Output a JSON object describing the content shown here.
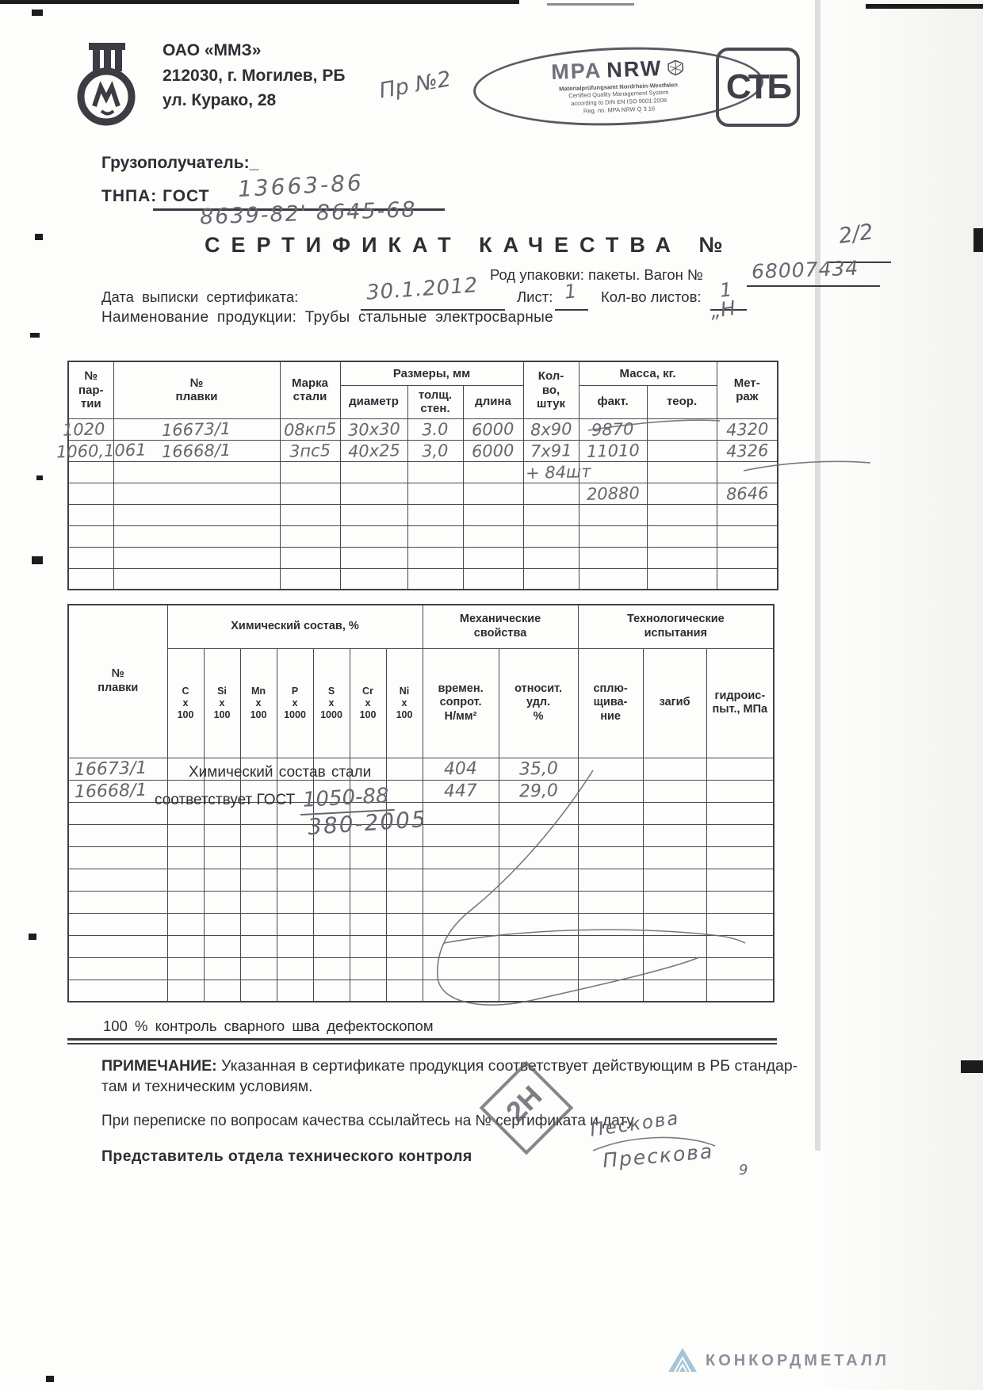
{
  "header": {
    "company": "ОАО «ММЗ»",
    "address1": "212030, г. Могилев, РБ",
    "address2": "ул. Курако, 28",
    "hw_note": "Пр №2",
    "mpa": {
      "name_part1": "MPA",
      "name_part2": "NRW",
      "sub1": "Materialprüfungsamt Nordrhein-Westfalen",
      "sub2": "Certified Quality Management System",
      "sub3": "according to DIN EN ISO 9001:2008",
      "sub4": "Reg. no. MPA NRW Q 3 16"
    },
    "stb": "СТБ"
  },
  "meta": {
    "consignee_label": "Грузополучатель:_",
    "tnpa_label": "ТНПА: ГОСТ",
    "tnpa_hw1": "13663-86",
    "tnpa_hw2": "8639-82' 8645-68",
    "title": "СЕРТИФИКАТ КАЧЕСТВА №",
    "title_hw": "2/2",
    "packing_label": "Род упаковки: пакеты. Вагон №",
    "packing_hw": "68007434",
    "date_label": "Дата выписки сертификата:",
    "date_hw": "30.1.2012",
    "sheet_label": "Лист:",
    "sheet_hw": "1",
    "sheets_count_label": "Кол-во листов:",
    "sheets_count_hw": "1",
    "product_label": "Наименование продукции: Трубы стальные электросварные",
    "product_hw": "„Н"
  },
  "table1": {
    "headers": {
      "batch": "№\nпар-\nтии",
      "melt": "№\nплавки",
      "grade": "Марка\nстали",
      "sizes_group": "Размеры, мм",
      "diameter": "диаметр",
      "wall": "толщ.\nстен.",
      "length": "длина",
      "qty": "Кол-\nво,\nштук",
      "mass_group": "Масса, кг.",
      "fact": "факт.",
      "theor": "теор.",
      "metrage": "Мет-\nраж"
    },
    "rows": [
      [
        "1020",
        "16673/1",
        "08кп5",
        "30х30",
        "3.0",
        "6000",
        "8х90",
        "9870",
        "",
        "4320"
      ],
      [
        "1060,1061",
        "16668/1",
        "3пс5",
        "40х25",
        "3,0",
        "6000",
        "7х91",
        "11010",
        "",
        "4326"
      ],
      [
        "",
        "",
        "",
        "",
        "",
        "",
        "+ 84шт",
        "",
        "",
        ""
      ],
      [
        "",
        "",
        "",
        "",
        "",
        "",
        "",
        "20880",
        "",
        "8646"
      ],
      [
        "",
        "",
        "",
        "",
        "",
        "",
        "",
        "",
        "",
        ""
      ],
      [
        "",
        "",
        "",
        "",
        "",
        "",
        "",
        "",
        "",
        ""
      ],
      [
        "",
        "",
        "",
        "",
        "",
        "",
        "",
        "",
        "",
        ""
      ],
      [
        "",
        "",
        "",
        "",
        "",
        "",
        "",
        "",
        "",
        ""
      ]
    ]
  },
  "table2": {
    "headers": {
      "melt": "№\nплавки",
      "chem_group": "Химический состав, %",
      "c": "C\nx\n100",
      "si": "Si\nx\n100",
      "mn": "Mn\nx\n100",
      "p": "P\nx\n1000",
      "s": "S\nx\n1000",
      "cr": "Cr\nx\n100",
      "ni": "Ni\nx\n100",
      "mech_group": "Механические\nсвойства",
      "tensile": "времен.\nсопрот.\nН/мм²",
      "elong": "относит.\nудл.\n%",
      "tech_group": "Технологические\nиспытания",
      "flatten": "сплю-\nщива-\nние",
      "bend": "загиб",
      "hydro": "гидроис-\nпыт., МПа"
    },
    "note_printed1": "Химический состав стали",
    "note_printed2": "соответствует ГОСТ",
    "note_hw1": "1050-88",
    "note_hw2": "380-2005",
    "rows": [
      [
        "16673/1",
        "",
        "",
        "",
        "",
        "",
        "",
        "",
        "404",
        "35,0",
        "",
        "",
        ""
      ],
      [
        "16668/1",
        "",
        "",
        "",
        "",
        "",
        "",
        "",
        "447",
        "29,0",
        "",
        "",
        ""
      ],
      [
        "",
        "",
        "",
        "",
        "",
        "",
        "",
        "",
        "",
        "",
        "",
        "",
        ""
      ],
      [
        "",
        "",
        "",
        "",
        "",
        "",
        "",
        "",
        "",
        "",
        "",
        "",
        ""
      ],
      [
        "",
        "",
        "",
        "",
        "",
        "",
        "",
        "",
        "",
        "",
        "",
        "",
        ""
      ],
      [
        "",
        "",
        "",
        "",
        "",
        "",
        "",
        "",
        "",
        "",
        "",
        "",
        ""
      ],
      [
        "",
        "",
        "",
        "",
        "",
        "",
        "",
        "",
        "",
        "",
        "",
        "",
        ""
      ],
      [
        "",
        "",
        "",
        "",
        "",
        "",
        "",
        "",
        "",
        "",
        "",
        "",
        ""
      ],
      [
        "",
        "",
        "",
        "",
        "",
        "",
        "",
        "",
        "",
        "",
        "",
        "",
        ""
      ],
      [
        "",
        "",
        "",
        "",
        "",
        "",
        "",
        "",
        "",
        "",
        "",
        "",
        ""
      ],
      [
        "",
        "",
        "",
        "",
        "",
        "",
        "",
        "",
        "",
        "",
        "",
        "",
        ""
      ]
    ]
  },
  "footer": {
    "weld_control": "100 %  контроль сварного шва дефектоскопом",
    "note_label": "ПРИМЕЧАНИЕ:",
    "note_text": "Указанная в сертификате продукция соответствует действующим в РБ стандар-\nтам и  техническим  условиям.",
    "correspondence": "При переписке по вопросам качества ссылайтесь на № сертификата и дату.",
    "rep_label": "Представитель отдела технического контроля",
    "stamp_text": "2Н",
    "signature1": "Пескова",
    "signature2": "Прескова",
    "hw_mark": "9"
  },
  "brand": {
    "name": "КОНКОРДМЕТАЛЛ"
  }
}
